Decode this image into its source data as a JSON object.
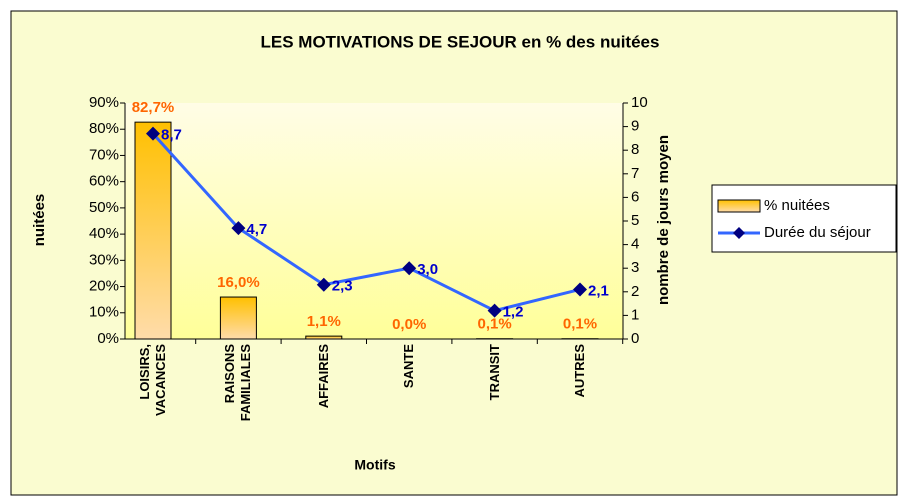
{
  "chart_data": {
    "type": "bar-line",
    "title": "LES MOTIVATIONS DE SEJOUR en % des nuitées",
    "xlabel": "Motifs",
    "ylabel": "nuitées",
    "y2label": "nombre de jours moyen",
    "categories": [
      "LOISIRS, VACANCES",
      "RAISONS FAMILIALES",
      "AFFAIRES",
      "SANTE",
      "TRANSIT",
      "AUTRES"
    ],
    "series": [
      {
        "name": "% nuitées",
        "type": "bar",
        "color": "#ffc000",
        "values": [
          82.7,
          16.0,
          1.1,
          0.0,
          0.1,
          0.1
        ],
        "value_labels": [
          "82,7%",
          "16,0%",
          "1,1%",
          "0,0%",
          "0,1%",
          "0,1%"
        ]
      },
      {
        "name": "Durée du séjour",
        "type": "line",
        "axis": "y2",
        "color": "#3366ff",
        "values": [
          8.7,
          4.7,
          2.3,
          3.0,
          1.2,
          2.1
        ],
        "value_labels": [
          "8,7",
          "4,7",
          "2,3",
          "3,0",
          "1,2",
          "2,1"
        ]
      }
    ],
    "ylim": [
      0,
      90
    ],
    "yticks": [
      {
        "value": 0,
        "label": "0%"
      },
      {
        "value": 10,
        "label": "10%"
      },
      {
        "value": 20,
        "label": "20%"
      },
      {
        "value": 30,
        "label": "30%"
      },
      {
        "value": 40,
        "label": "40%"
      },
      {
        "value": 50,
        "label": "50%"
      },
      {
        "value": 60,
        "label": "60%"
      },
      {
        "value": 70,
        "label": "70%"
      },
      {
        "value": 80,
        "label": "80%"
      },
      {
        "value": 90,
        "label": "90%"
      }
    ],
    "y2lim": [
      0,
      10
    ],
    "y2ticks": [
      0,
      1,
      2,
      3,
      4,
      5,
      6,
      7,
      8,
      9,
      10
    ],
    "legend": "right"
  }
}
